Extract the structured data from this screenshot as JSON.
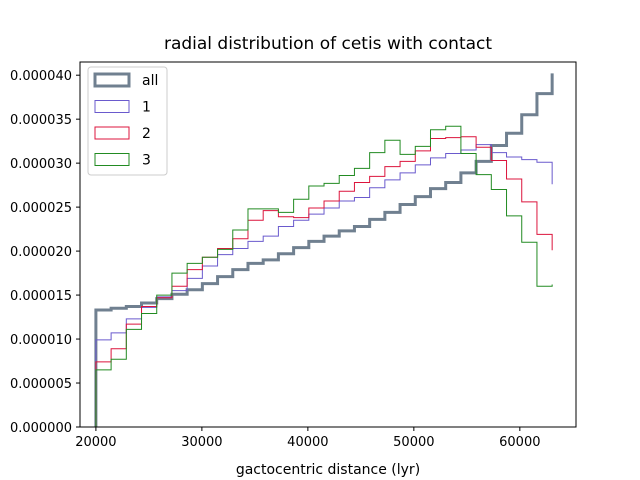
{
  "chart_data": {
    "type": "histogram",
    "title": "radial distribution of cetis with contact",
    "xlabel": "gactocentric distance (lyr)",
    "ylabel": "",
    "xlim": [
      18500,
      65300
    ],
    "ylim": [
      0,
      4.15e-05
    ],
    "x_ticks": [
      20000,
      30000,
      40000,
      50000,
      60000
    ],
    "x_tick_labels": [
      "20000",
      "30000",
      "40000",
      "50000",
      "60000"
    ],
    "y_ticks": [
      0,
      5e-06,
      1e-05,
      1.5e-05,
      2e-05,
      2.5e-05,
      3e-05,
      3.5e-05,
      4e-05
    ],
    "y_tick_labels": [
      "0.000000",
      "0.000005",
      "0.000010",
      "0.000015",
      "0.000020",
      "0.000025",
      "0.000030",
      "0.000035",
      "0.000040"
    ],
    "bin_edges": [
      20000,
      21435,
      22870,
      24305,
      25740,
      27175,
      28610,
      30045,
      31480,
      32915,
      34350,
      35785,
      37220,
      38655,
      40090,
      41525,
      42960,
      44395,
      45830,
      47265,
      48700,
      50135,
      51570,
      53005,
      54440,
      55875,
      57310,
      58745,
      60180,
      61615,
      63050
    ],
    "series": [
      {
        "name": "all",
        "color": "#708090",
        "line_width": 3,
        "values": [
          1.33e-05,
          1.35e-05,
          1.37e-05,
          1.41e-05,
          1.46e-05,
          1.51e-05,
          1.56e-05,
          1.63e-05,
          1.71e-05,
          1.79e-05,
          1.86e-05,
          1.9e-05,
          1.97e-05,
          2.04e-05,
          2.11e-05,
          2.17e-05,
          2.23e-05,
          2.28e-05,
          2.36e-05,
          2.44e-05,
          2.53e-05,
          2.62e-05,
          2.71e-05,
          2.78e-05,
          2.89e-05,
          3.02e-05,
          3.2e-05,
          3.34e-05,
          3.55e-05,
          3.79e-05,
          4.02e-05
        ]
      },
      {
        "name": "1",
        "color": "#6a5acd",
        "line_width": 1,
        "values": [
          9.9e-06,
          1.07e-05,
          1.23e-05,
          1.36e-05,
          1.48e-05,
          1.55e-05,
          1.69e-05,
          1.83e-05,
          1.96e-05,
          2.03e-05,
          2.11e-05,
          2.17e-05,
          2.28e-05,
          2.35e-05,
          2.42e-05,
          2.49e-05,
          2.57e-05,
          2.61e-05,
          2.72e-05,
          2.81e-05,
          2.89e-05,
          2.98e-05,
          3.06e-05,
          3.11e-05,
          3.15e-05,
          3.21e-05,
          3.12e-05,
          3.07e-05,
          3.04e-05,
          3.01e-05,
          2.76e-05
        ]
      },
      {
        "name": "2",
        "color": "#dc143c",
        "line_width": 1,
        "values": [
          7.4e-06,
          8.9e-06,
          1.17e-05,
          1.37e-05,
          1.47e-05,
          1.6e-05,
          1.79e-05,
          1.93e-05,
          2.03e-05,
          2.14e-05,
          2.35e-05,
          2.46e-05,
          2.39e-05,
          2.38e-05,
          2.49e-05,
          2.57e-05,
          2.68e-05,
          2.78e-05,
          2.85e-05,
          2.96e-05,
          3.02e-05,
          3.14e-05,
          3.28e-05,
          3.29e-05,
          3.3e-05,
          3.18e-05,
          3.03e-05,
          2.82e-05,
          2.56e-05,
          2.19e-05,
          2.01e-05
        ]
      },
      {
        "name": "3",
        "color": "#228b22",
        "line_width": 1,
        "values": [
          6.5e-06,
          7.7e-06,
          1.11e-05,
          1.29e-05,
          1.5e-05,
          1.75e-05,
          1.86e-05,
          1.93e-05,
          2.02e-05,
          2.24e-05,
          2.48e-05,
          2.48e-05,
          2.44e-05,
          2.59e-05,
          2.74e-05,
          2.77e-05,
          2.86e-05,
          2.94e-05,
          3.12e-05,
          3.26e-05,
          3.1e-05,
          3.19e-05,
          3.38e-05,
          3.42e-05,
          3.11e-05,
          2.87e-05,
          2.7e-05,
          2.4e-05,
          2.1e-05,
          1.6e-05,
          1.62e-05
        ]
      }
    ],
    "legend": {
      "position": "top-left",
      "entries": [
        "all",
        "1",
        "2",
        "3"
      ]
    },
    "grid": false
  }
}
